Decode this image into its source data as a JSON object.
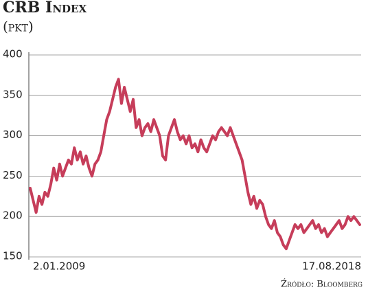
{
  "chart_data": {
    "type": "line",
    "title": "CRB Index",
    "subtitle": "(pkt)",
    "source": "Źródło: Bloomberg",
    "categories": [
      "2.01.2009",
      null,
      null,
      null,
      null,
      null,
      null,
      null,
      null,
      null,
      null,
      null,
      null,
      null,
      null,
      null,
      null,
      null,
      null,
      null,
      null,
      null,
      null,
      null,
      null,
      null,
      null,
      null,
      null,
      null,
      null,
      null,
      null,
      null,
      null,
      null,
      null,
      null,
      null,
      null,
      null,
      null,
      null,
      null,
      null,
      null,
      null,
      null,
      null,
      null,
      null,
      null,
      null,
      null,
      null,
      null,
      null,
      null,
      null,
      null,
      null,
      null,
      null,
      null,
      null,
      null,
      null,
      null,
      null,
      null,
      null,
      null,
      null,
      null,
      null,
      null,
      null,
      null,
      null,
      null,
      null,
      null,
      null,
      null,
      null,
      null,
      null,
      null,
      null,
      null,
      null,
      null,
      null,
      null,
      null,
      null,
      null,
      null,
      null,
      null,
      null,
      null,
      null,
      null,
      null,
      null,
      null,
      null,
      null,
      null,
      null,
      null,
      "17.08.2018"
    ],
    "values": [
      235,
      220,
      205,
      225,
      215,
      230,
      225,
      240,
      260,
      245,
      265,
      250,
      260,
      270,
      265,
      285,
      270,
      280,
      265,
      275,
      260,
      250,
      265,
      270,
      280,
      300,
      320,
      330,
      345,
      360,
      370,
      340,
      360,
      345,
      330,
      345,
      310,
      320,
      300,
      310,
      315,
      305,
      320,
      310,
      300,
      275,
      270,
      300,
      310,
      320,
      305,
      295,
      300,
      290,
      300,
      285,
      290,
      280,
      295,
      285,
      280,
      290,
      300,
      295,
      305,
      310,
      305,
      300,
      310,
      300,
      290,
      280,
      270,
      250,
      230,
      215,
      225,
      210,
      220,
      215,
      200,
      190,
      185,
      195,
      180,
      175,
      165,
      160,
      170,
      180,
      190,
      185,
      190,
      180,
      185,
      190,
      195,
      185,
      190,
      180,
      185,
      175,
      180,
      185,
      190,
      195,
      185,
      190,
      200,
      195,
      200,
      195,
      190
    ],
    "color": "#c63d5a",
    "ylim": [
      150,
      400
    ],
    "yticks": [
      150,
      200,
      250,
      300,
      350,
      400
    ],
    "grid": true
  }
}
